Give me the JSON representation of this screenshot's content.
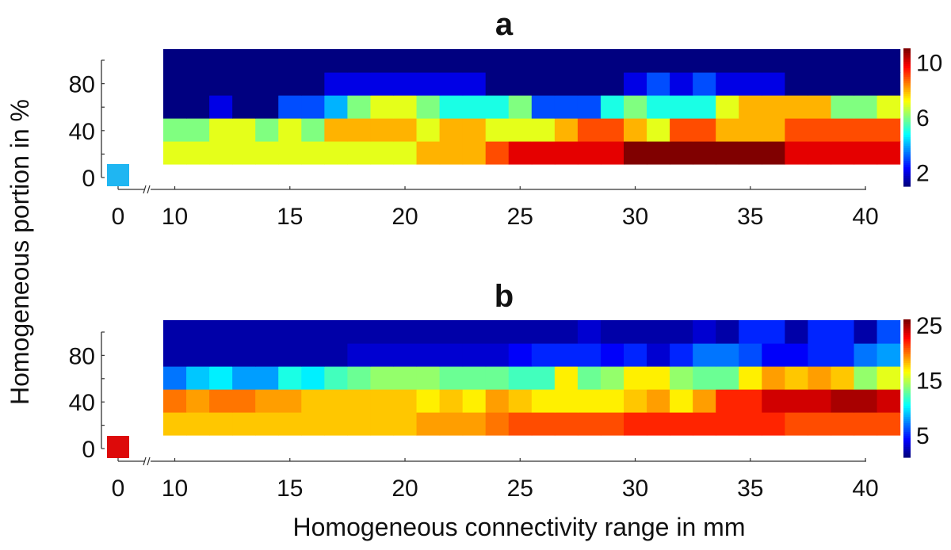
{
  "chart_data": [
    {
      "type": "heatmap",
      "title": "a",
      "xlabel": "Homogeneous connectivity range in mm",
      "ylabel": "Homogeneous portion in %",
      "x": [
        10,
        11,
        12,
        13,
        14,
        15,
        16,
        17,
        18,
        19,
        20,
        21,
        22,
        23,
        24,
        25,
        26,
        27,
        28,
        29,
        30,
        31,
        32,
        33,
        34,
        35,
        36,
        37,
        38,
        39,
        40,
        41
      ],
      "y": [
        10,
        30,
        50,
        70,
        90
      ],
      "xticks": [
        10,
        15,
        20,
        25,
        30,
        35,
        40
      ],
      "xtick_labels": [
        "10",
        "15",
        "20",
        "25",
        "30",
        "35",
        "40"
      ],
      "x_break_tick": {
        "value": 0,
        "label": "0"
      },
      "yticks": [
        0,
        40,
        80
      ],
      "ytick_labels": [
        "0",
        "40",
        "80"
      ],
      "ylim": [
        0,
        100
      ],
      "colorbar": {
        "range": [
          1,
          11
        ],
        "ticks": [
          2,
          6,
          10
        ],
        "tick_labels": [
          "2",
          "6",
          "10"
        ],
        "colormap": "jet"
      },
      "baseline_cell": {
        "x": 0,
        "y": 0,
        "value": 4,
        "color": "#1fb6f2"
      },
      "values": [
        [
          7,
          7,
          7,
          7,
          7,
          7,
          7,
          7,
          7,
          7,
          7,
          8,
          8,
          8,
          9,
          10,
          10,
          10,
          10,
          10,
          11,
          11,
          11,
          11,
          11,
          11,
          11,
          10,
          10,
          10,
          10,
          10
        ],
        [
          6,
          6,
          7,
          7,
          6,
          7,
          6,
          8,
          8,
          8,
          8,
          7,
          8,
          8,
          7,
          7,
          7,
          8,
          9,
          9,
          8,
          7,
          9,
          9,
          8,
          8,
          8,
          9,
          9,
          9,
          9,
          9
        ],
        [
          1,
          1,
          2,
          1,
          1,
          3,
          3,
          4,
          6,
          7,
          7,
          6,
          5,
          5,
          5,
          6,
          3,
          3,
          3,
          5,
          6,
          5,
          5,
          5,
          7,
          8,
          8,
          8,
          8,
          6,
          6,
          7
        ],
        [
          1,
          1,
          1,
          1,
          1,
          1,
          1,
          2,
          2,
          2,
          2,
          2,
          2,
          2,
          1,
          1,
          1,
          1,
          1,
          1,
          2,
          3,
          2,
          3,
          2,
          2,
          2,
          1,
          1,
          1,
          1,
          1
        ],
        [
          1,
          1,
          1,
          1,
          1,
          1,
          1,
          1,
          1,
          1,
          1,
          1,
          1,
          1,
          1,
          1,
          1,
          1,
          1,
          1,
          1,
          1,
          1,
          1,
          1,
          1,
          1,
          1,
          1,
          1,
          1,
          1
        ]
      ]
    },
    {
      "type": "heatmap",
      "title": "b",
      "xlabel": "Homogeneous connectivity range in mm",
      "ylabel": "Homogeneous portion in %",
      "x": [
        10,
        11,
        12,
        13,
        14,
        15,
        16,
        17,
        18,
        19,
        20,
        21,
        22,
        23,
        24,
        25,
        26,
        27,
        28,
        29,
        30,
        31,
        32,
        33,
        34,
        35,
        36,
        37,
        38,
        39,
        40,
        41
      ],
      "y": [
        10,
        30,
        50,
        70,
        90
      ],
      "xticks": [
        10,
        15,
        20,
        25,
        30,
        35,
        40
      ],
      "xtick_labels": [
        "10",
        "15",
        "20",
        "25",
        "30",
        "35",
        "40"
      ],
      "x_break_tick": {
        "value": 0,
        "label": "0"
      },
      "yticks": [
        0,
        40,
        80
      ],
      "ytick_labels": [
        "0",
        "40",
        "80"
      ],
      "ylim": [
        0,
        100
      ],
      "colorbar": {
        "range": [
          1,
          26
        ],
        "ticks": [
          5,
          15,
          25
        ],
        "tick_labels": [
          "5",
          "15",
          "25"
        ],
        "colormap": "jet"
      },
      "baseline_cell": {
        "x": 0,
        "y": 0,
        "value": 24,
        "color": "#dd0a0a"
      },
      "values": [
        [
          18,
          18,
          18,
          18,
          18,
          18,
          18,
          18,
          18,
          18,
          18,
          19,
          19,
          19,
          20,
          21,
          21,
          21,
          21,
          21,
          22,
          22,
          22,
          22,
          22,
          22,
          22,
          21,
          21,
          21,
          21,
          21
        ],
        [
          20,
          19,
          20,
          20,
          19,
          19,
          18,
          18,
          18,
          18,
          18,
          17,
          18,
          17,
          19,
          18,
          17,
          17,
          17,
          17,
          18,
          19,
          17,
          19,
          22,
          22,
          24,
          24,
          24,
          25,
          25,
          24
        ],
        [
          7,
          9,
          10,
          8,
          8,
          11,
          10,
          12,
          13,
          14,
          14,
          14,
          13,
          13,
          13,
          12,
          12,
          17,
          13,
          14,
          17,
          17,
          14,
          13,
          13,
          17,
          19,
          18,
          19,
          18,
          14,
          16
        ],
        [
          2,
          2,
          2,
          2,
          2,
          2,
          2,
          2,
          3,
          3,
          3,
          3,
          3,
          3,
          3,
          4,
          5,
          5,
          5,
          4,
          5,
          3,
          5,
          7,
          7,
          6,
          4,
          4,
          5,
          5,
          7,
          8
        ],
        [
          2,
          2,
          2,
          2,
          2,
          2,
          2,
          2,
          2,
          2,
          2,
          2,
          2,
          2,
          2,
          2,
          2,
          2,
          3,
          2,
          2,
          2,
          2,
          3,
          2,
          5,
          5,
          2,
          5,
          5,
          2,
          6
        ]
      ]
    }
  ]
}
